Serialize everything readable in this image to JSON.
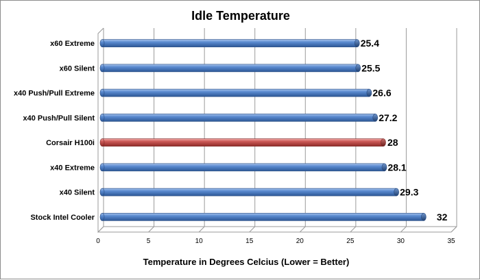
{
  "chart_data": {
    "type": "bar",
    "orientation": "horizontal",
    "title": "Idle Temperature",
    "xlabel": "Temperature in Degrees Celcius (Lower = Better)",
    "xlim": [
      0,
      35
    ],
    "x_ticks": [
      "0",
      "5",
      "10",
      "15",
      "20",
      "25",
      "30",
      "35"
    ],
    "grid": true,
    "legend": "none",
    "categories": [
      "x60 Extreme",
      "x60 Silent",
      "x40 Push/Pull Extreme",
      "x40 Push/Pull Silent",
      "Corsair H100i",
      "x40 Extreme",
      "x40 Silent",
      "Stock Intel Cooler"
    ],
    "values": [
      25.4,
      25.5,
      26.6,
      27.2,
      28,
      28.1,
      29.3,
      32
    ],
    "data_labels": [
      "25.4",
      "25.5",
      "26.6",
      "27.2",
      "28",
      "28.1",
      "29.3",
      "32"
    ],
    "colors": {
      "default_bar": "#4f81bd",
      "highlight_bar": "#c0504d"
    },
    "highlight_category": "Corsair H100i"
  }
}
